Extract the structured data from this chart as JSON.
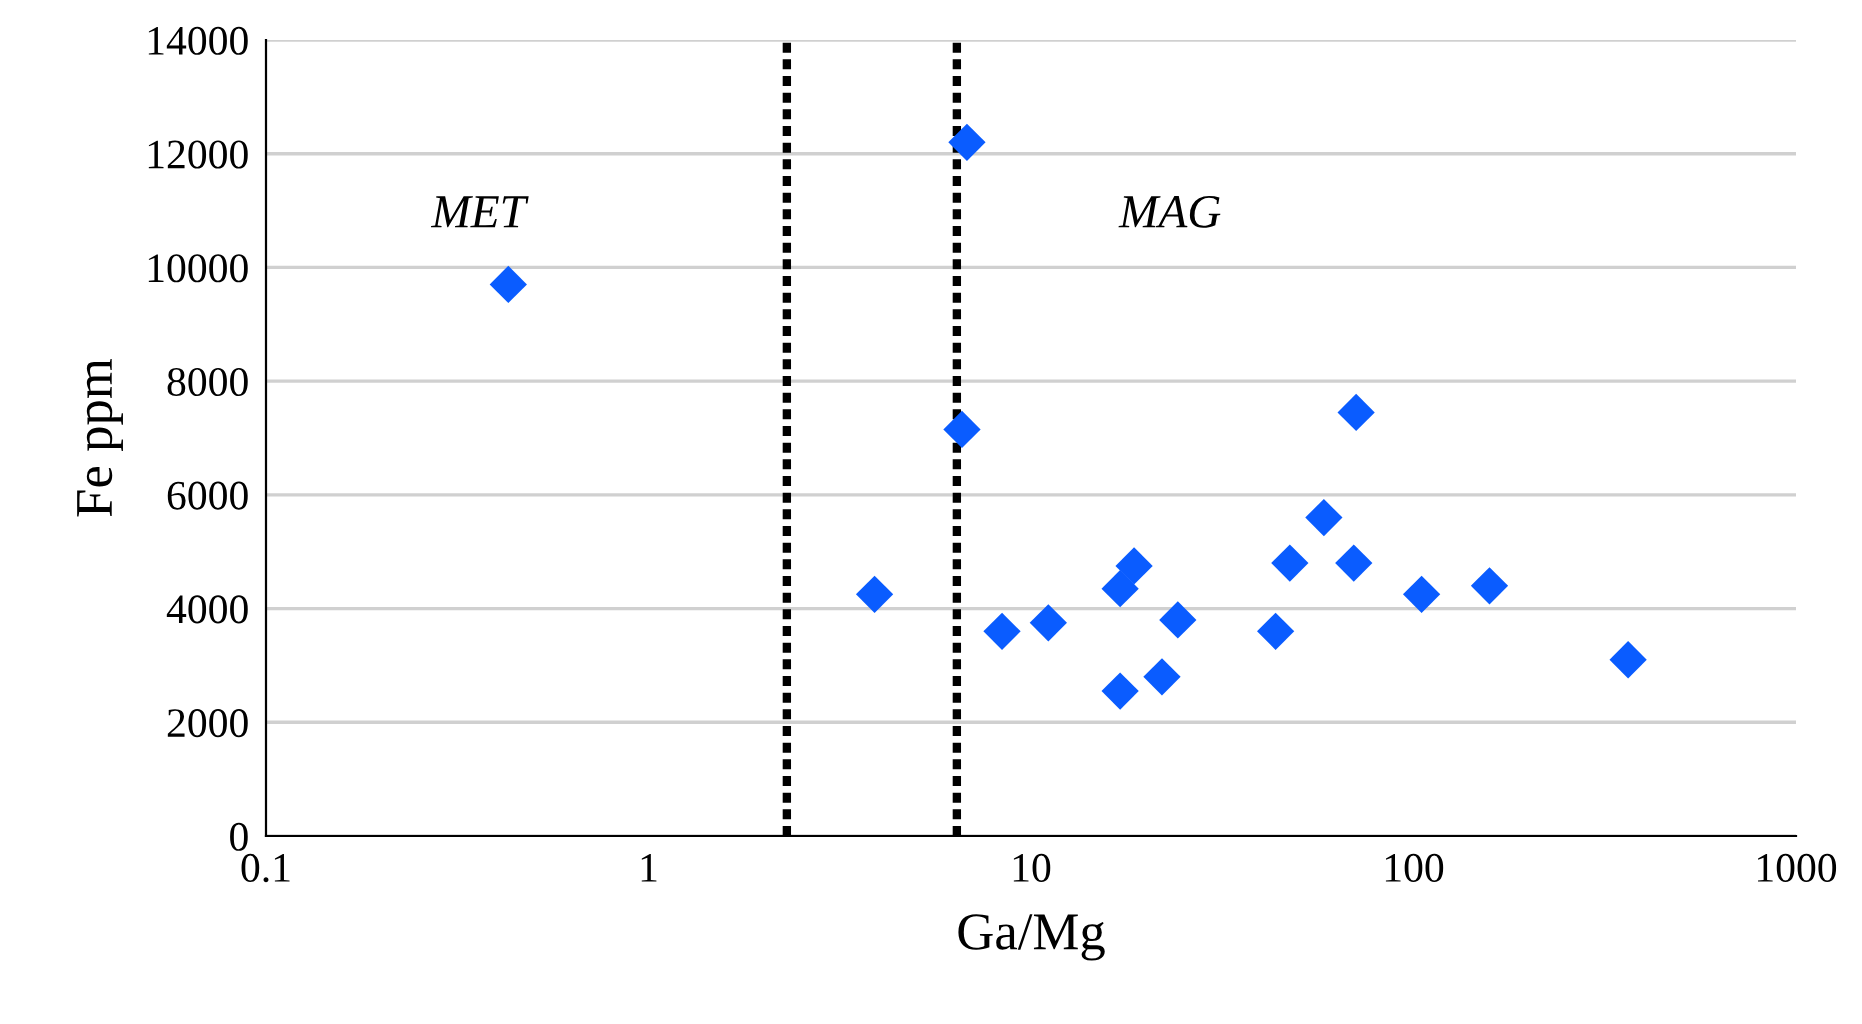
{
  "chart_data": {
    "type": "scatter",
    "xlabel": "Ga/Mg",
    "ylabel": "Fe ppm",
    "log": "x",
    "grid": "y",
    "marker": "diamond",
    "legend": false,
    "xlim": [
      0.1,
      1000
    ],
    "xticks": [
      0.1,
      1,
      10,
      100,
      1000
    ],
    "ylim": [
      0,
      14000
    ],
    "yticks": [
      0,
      2000,
      4000,
      6000,
      8000,
      10000,
      12000,
      14000
    ],
    "series": [
      {
        "color": "#0a5cff",
        "x": [
          0.43,
          6.8,
          6.6,
          3.9,
          8.4,
          11.1,
          17.1,
          18.6,
          17.1,
          22.0,
          24.2,
          43.6,
          47.5,
          58.3,
          69.8,
          70.8,
          105,
          158,
          364
        ],
        "values": [
          9700,
          12200,
          7150,
          4250,
          3600,
          3750,
          4350,
          4750,
          2550,
          2800,
          3800,
          3600,
          4800,
          5600,
          4800,
          7450,
          4250,
          4400,
          3100
        ]
      }
    ],
    "ref_lines": [
      {
        "axis": "x",
        "value": 2.3,
        "color": "#000000",
        "line_style": "dotted"
      },
      {
        "axis": "x",
        "value": 6.4,
        "color": "#000000",
        "line_style": "dotted"
      }
    ],
    "annotations": [
      "MET",
      "MAG"
    ]
  }
}
